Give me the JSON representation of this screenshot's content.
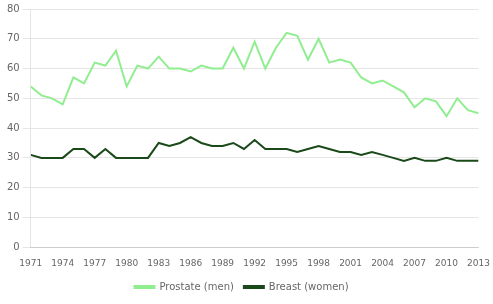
{
  "chart_data": {
    "type": "line",
    "x": [
      1971,
      1972,
      1973,
      1974,
      1975,
      1976,
      1977,
      1978,
      1979,
      1980,
      1981,
      1982,
      1983,
      1984,
      1985,
      1986,
      1987,
      1988,
      1989,
      1990,
      1991,
      1992,
      1993,
      1994,
      1995,
      1996,
      1997,
      1998,
      1999,
      2000,
      2001,
      2002,
      2003,
      2004,
      2005,
      2006,
      2007,
      2008,
      2009,
      2010,
      2011,
      2012,
      2013
    ],
    "series": [
      {
        "name": "Prostate (men)",
        "color": "#90EE90",
        "values": [
          54,
          51,
          50,
          48,
          57,
          55,
          62,
          61,
          66,
          54,
          61,
          60,
          64,
          60,
          60,
          59,
          61,
          60,
          60,
          67,
          60,
          69,
          60,
          67,
          72,
          71,
          63,
          70,
          62,
          63,
          62,
          57,
          55,
          56,
          54,
          52,
          47,
          50,
          49,
          44,
          50,
          46,
          45
        ]
      },
      {
        "name": "Breast (women)",
        "color": "#1a4a1a",
        "values": [
          31,
          30,
          30,
          30,
          33,
          33,
          30,
          33,
          30,
          30,
          30,
          30,
          35,
          34,
          35,
          37,
          35,
          34,
          34,
          35,
          33,
          36,
          33,
          33,
          33,
          32,
          33,
          34,
          33,
          32,
          32,
          31,
          32,
          31,
          30,
          29,
          30,
          29,
          29,
          30,
          29,
          29,
          29
        ]
      }
    ],
    "xlim": [
      1971,
      2013
    ],
    "xticks": [
      1971,
      1974,
      1977,
      1980,
      1983,
      1986,
      1989,
      1992,
      1995,
      1998,
      2001,
      2004,
      2007,
      2010,
      2013
    ],
    "ylim": [
      0,
      80
    ],
    "yticks": [
      0,
      10,
      20,
      30,
      40,
      50,
      60,
      70,
      80
    ],
    "grid": "y",
    "legend": "bottom"
  }
}
